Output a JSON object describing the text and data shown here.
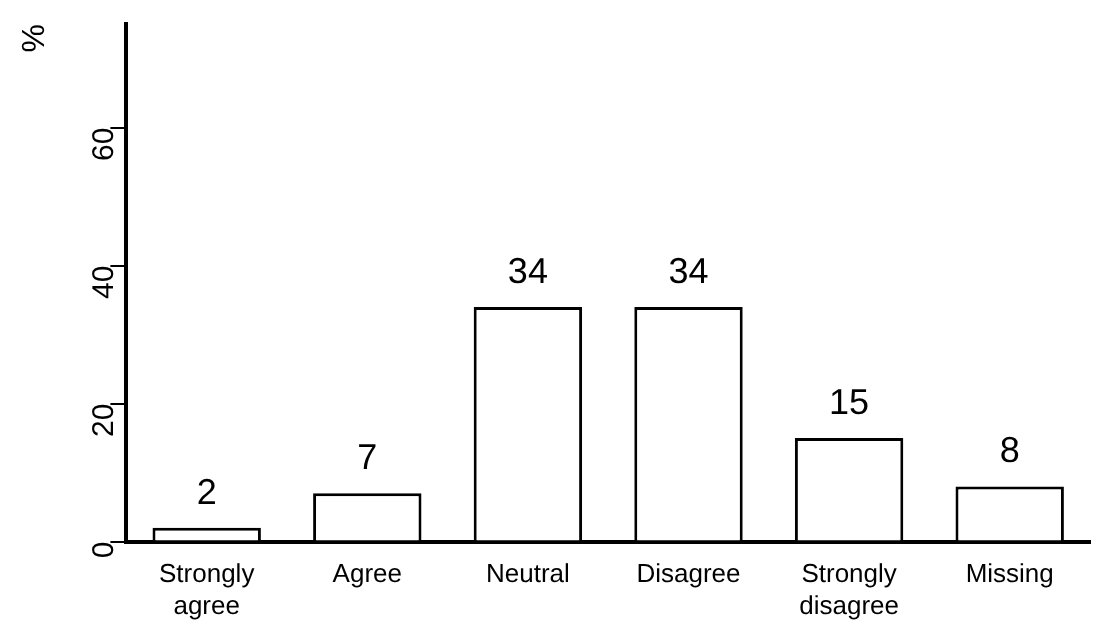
{
  "chart_data": {
    "type": "bar",
    "ylabel": "%",
    "categories": [
      "Strongly agree",
      "Agree",
      "Neutral",
      "Disagree",
      "Strongly disagree",
      "Missing"
    ],
    "values": [
      2,
      7,
      34,
      34,
      15,
      8
    ],
    "color": "#ffffff",
    "ylim": [
      0,
      75
    ],
    "yticks": [
      0,
      20,
      40,
      60
    ],
    "grid": false,
    "data_labels": true
  }
}
